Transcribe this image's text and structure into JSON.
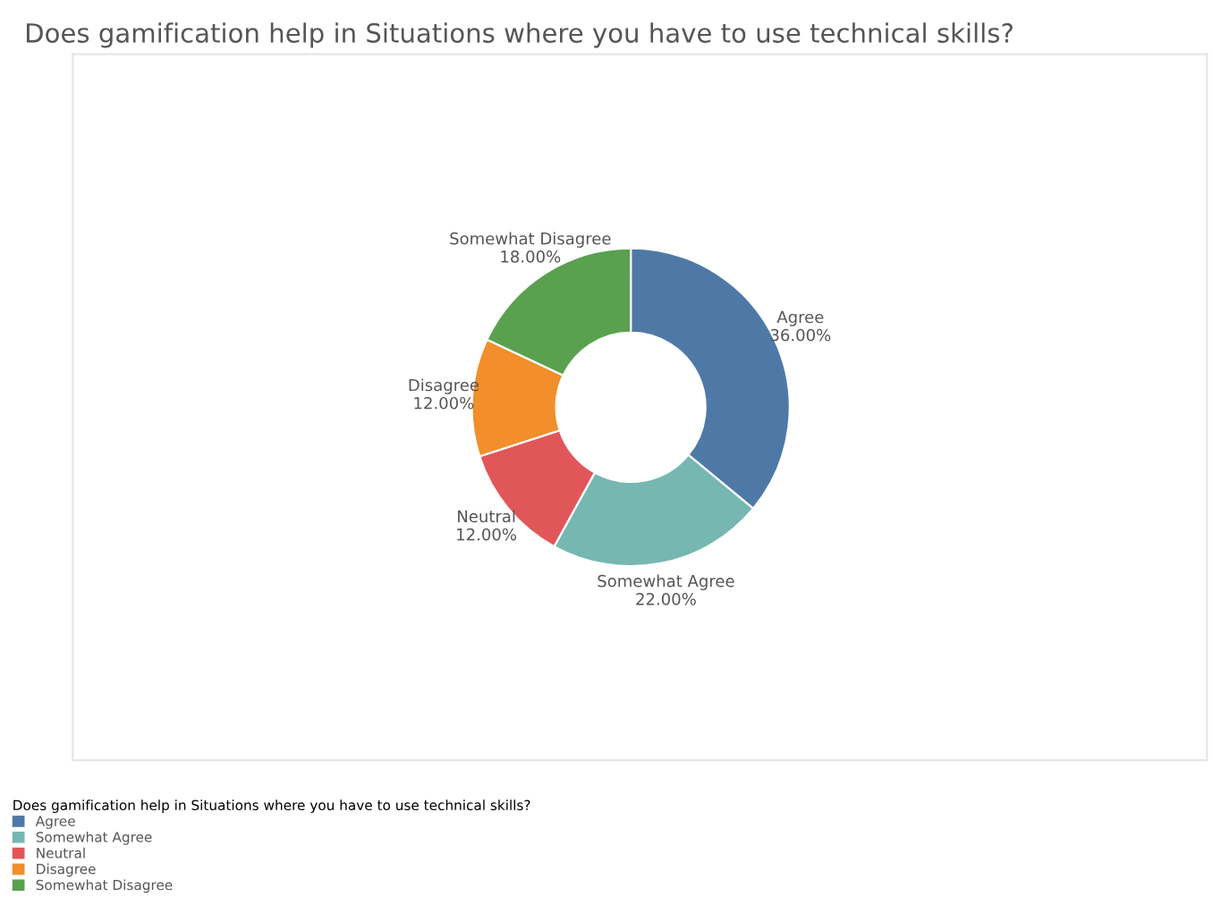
{
  "chart_data": {
    "type": "donut",
    "title": "Does gamification help in Situations where you have to use technical skills?",
    "legend_title": "Does gamification help in Situations where you have to use technical skills?",
    "categories": [
      "Agree",
      "Somewhat Agree",
      "Neutral",
      "Disagree",
      "Somewhat Disagree"
    ],
    "values": [
      36,
      22,
      12,
      12,
      18
    ],
    "value_labels": [
      "36.00%",
      "22.00%",
      "12.00%",
      "12.00%",
      "18.00%"
    ],
    "colors": [
      "#4e79a7",
      "#76b7b2",
      "#e15759",
      "#f28e2b",
      "#59a14f"
    ],
    "legend": "bottom left"
  }
}
